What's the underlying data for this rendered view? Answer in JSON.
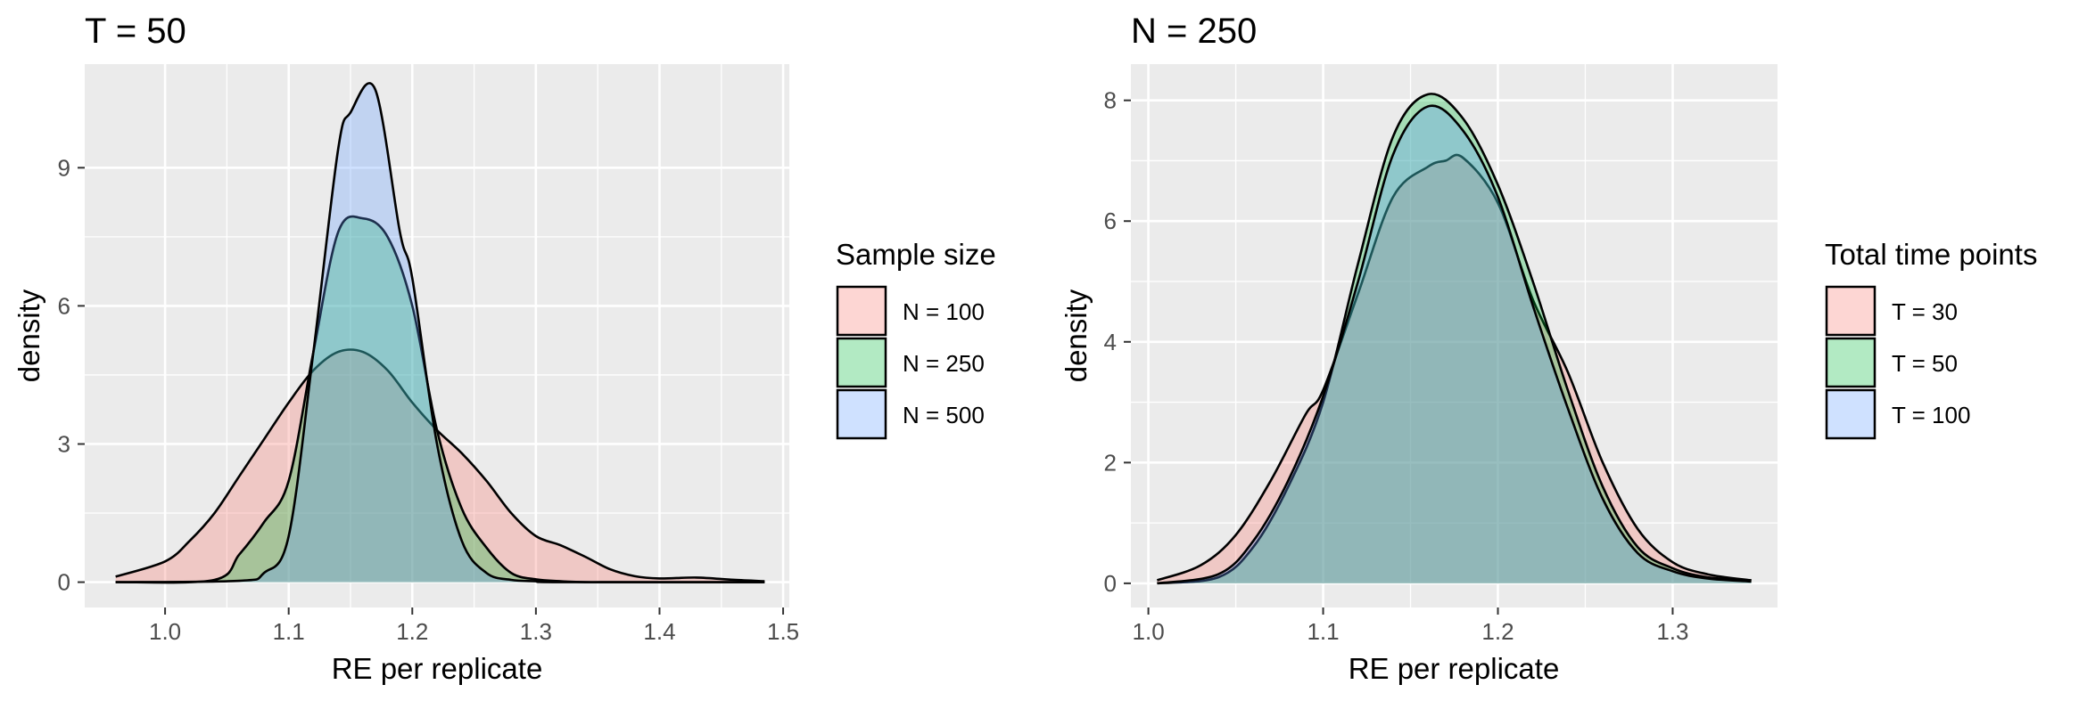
{
  "chart_data": [
    {
      "type": "area",
      "title": "T = 50",
      "xlabel": "RE per replicate",
      "ylabel": "density",
      "xlim": [
        0.935,
        1.505
      ],
      "ylim": [
        -0.55,
        11.25
      ],
      "x_ticks": [
        1.0,
        1.1,
        1.2,
        1.3,
        1.4,
        1.5
      ],
      "x_tick_labels": [
        "1.0",
        "1.1",
        "1.2",
        "1.3",
        "1.4",
        "1.5"
      ],
      "y_ticks": [
        0,
        3,
        6,
        9
      ],
      "y_tick_labels": [
        "0",
        "3",
        "6",
        "9"
      ],
      "grid": true,
      "legend": {
        "title": "Sample size",
        "placement": "right",
        "entries": [
          "N = 100",
          "N = 250",
          "N = 500"
        ]
      },
      "series": [
        {
          "name": "N = 100",
          "color": "#F8766D",
          "x": [
            0.96,
            1.0,
            1.02,
            1.04,
            1.06,
            1.08,
            1.1,
            1.12,
            1.14,
            1.16,
            1.18,
            1.2,
            1.22,
            1.24,
            1.26,
            1.28,
            1.3,
            1.32,
            1.34,
            1.36,
            1.38,
            1.4,
            1.43,
            1.46,
            1.485
          ],
          "values": [
            0.12,
            0.45,
            0.9,
            1.5,
            2.3,
            3.1,
            3.9,
            4.6,
            5.0,
            5.0,
            4.6,
            3.9,
            3.3,
            2.8,
            2.2,
            1.5,
            1.0,
            0.8,
            0.55,
            0.28,
            0.13,
            0.08,
            0.1,
            0.05,
            0.02
          ]
        },
        {
          "name": "N = 250",
          "color": "#00BA38",
          "x": [
            0.96,
            1.04,
            1.06,
            1.08,
            1.1,
            1.12,
            1.14,
            1.16,
            1.18,
            1.2,
            1.22,
            1.24,
            1.26,
            1.28,
            1.3,
            1.32,
            1.34,
            1.36,
            1.38,
            1.4,
            1.485
          ],
          "values": [
            0.0,
            0.05,
            0.6,
            1.3,
            2.2,
            5.0,
            7.6,
            7.9,
            7.5,
            6.0,
            3.3,
            1.6,
            0.75,
            0.2,
            0.06,
            0.02,
            0.0,
            0.0,
            0.0,
            0.0,
            0.0
          ]
        },
        {
          "name": "N = 500",
          "color": "#619CFF",
          "x": [
            0.96,
            1.06,
            1.08,
            1.1,
            1.12,
            1.14,
            1.15,
            1.17,
            1.19,
            1.2,
            1.22,
            1.24,
            1.26,
            1.28,
            1.3,
            1.32,
            1.485
          ],
          "values": [
            0.0,
            0.03,
            0.2,
            1.0,
            5.0,
            9.4,
            10.2,
            10.7,
            7.6,
            6.6,
            3.0,
            0.9,
            0.2,
            0.05,
            0.02,
            0.0,
            0.0
          ]
        }
      ]
    },
    {
      "type": "area",
      "title": "N = 250",
      "xlabel": "RE per replicate",
      "ylabel": "density",
      "xlim": [
        0.99,
        1.36
      ],
      "ylim": [
        -0.4,
        8.6
      ],
      "x_ticks": [
        1.0,
        1.1,
        1.2,
        1.3
      ],
      "x_tick_labels": [
        "1.0",
        "1.1",
        "1.2",
        "1.3"
      ],
      "y_ticks": [
        0,
        2,
        4,
        6,
        8
      ],
      "y_tick_labels": [
        "0",
        "2",
        "4",
        "6",
        "8"
      ],
      "grid": true,
      "legend": {
        "title": "Total time points",
        "placement": "right",
        "entries": [
          "T = 30",
          "T = 50",
          "T = 100"
        ]
      },
      "series": [
        {
          "name": "T = 30",
          "color": "#F8766D",
          "x": [
            1.005,
            1.03,
            1.05,
            1.07,
            1.09,
            1.1,
            1.12,
            1.14,
            1.16,
            1.17,
            1.18,
            1.2,
            1.22,
            1.24,
            1.26,
            1.28,
            1.3,
            1.32,
            1.345
          ],
          "values": [
            0.05,
            0.3,
            0.8,
            1.7,
            2.8,
            3.2,
            4.8,
            6.4,
            6.9,
            7.0,
            7.05,
            6.3,
            4.7,
            3.5,
            2.0,
            0.9,
            0.35,
            0.15,
            0.05
          ]
        },
        {
          "name": "T = 50",
          "color": "#00BA38",
          "x": [
            1.005,
            1.04,
            1.06,
            1.08,
            1.1,
            1.12,
            1.14,
            1.16,
            1.18,
            1.2,
            1.22,
            1.24,
            1.26,
            1.28,
            1.3,
            1.32,
            1.345
          ],
          "values": [
            0.0,
            0.1,
            0.6,
            1.6,
            3.0,
            5.3,
            7.4,
            8.1,
            7.7,
            6.6,
            5.0,
            3.2,
            1.6,
            0.6,
            0.25,
            0.1,
            0.05
          ]
        },
        {
          "name": "T = 100",
          "color": "#619CFF",
          "x": [
            1.005,
            1.04,
            1.06,
            1.08,
            1.1,
            1.12,
            1.14,
            1.16,
            1.18,
            1.2,
            1.22,
            1.24,
            1.26,
            1.28,
            1.3,
            1.32,
            1.345
          ],
          "values": [
            0.0,
            0.15,
            0.7,
            1.7,
            3.1,
            5.0,
            7.1,
            7.9,
            7.5,
            6.4,
            4.6,
            2.9,
            1.4,
            0.5,
            0.2,
            0.08,
            0.03
          ]
        }
      ]
    }
  ]
}
